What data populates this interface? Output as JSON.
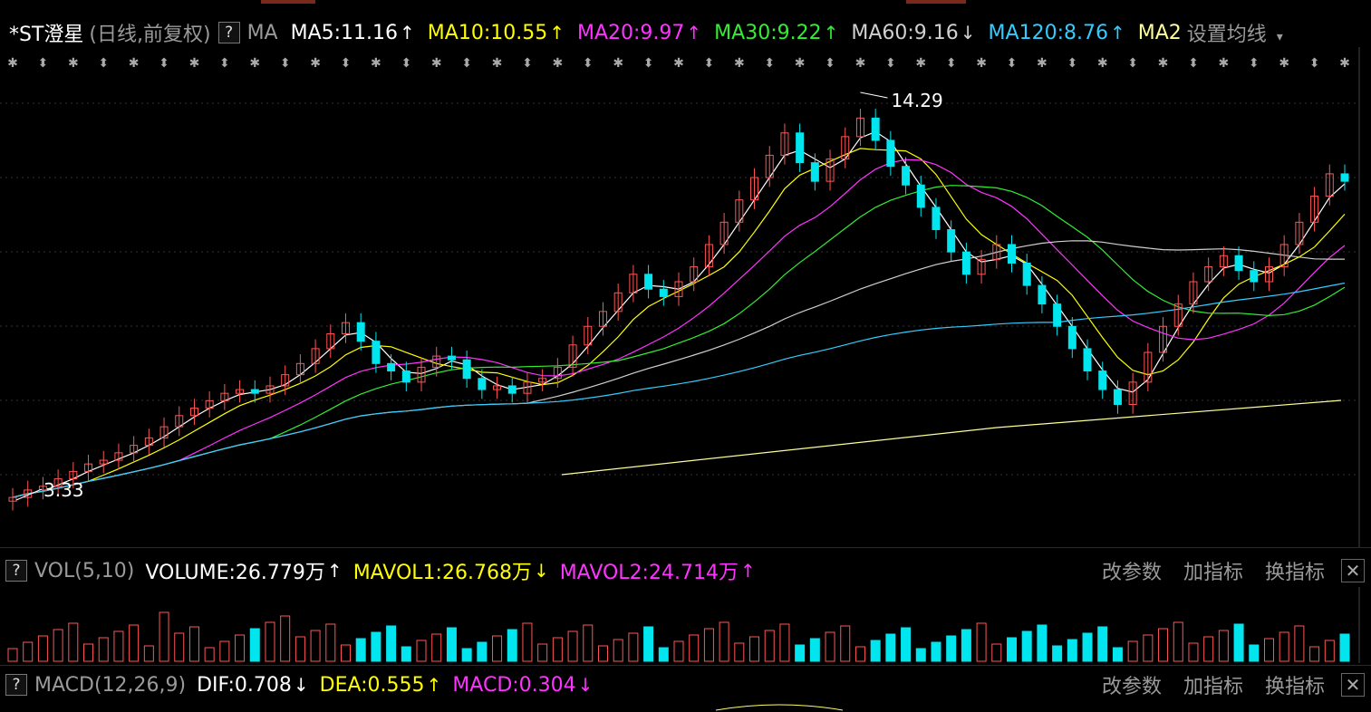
{
  "main_indicator": {
    "stock_title": "*ST澄星",
    "period_label": "(日线,前复权)",
    "help": "?",
    "ma_label": "MA",
    "items": [
      {
        "text": "MA5:11.16",
        "arrow": "↑",
        "color": "#ffffff"
      },
      {
        "text": "MA10:10.55",
        "arrow": "↑",
        "color": "#ffff00"
      },
      {
        "text": "MA20:9.97",
        "arrow": "↑",
        "color": "#ff33ff"
      },
      {
        "text": "MA30:9.22",
        "arrow": "↑",
        "color": "#33ee33"
      },
      {
        "text": "MA60:9.16",
        "arrow": "↓",
        "color": "#d0d0d0"
      },
      {
        "text": "MA120:8.76",
        "arrow": "↑",
        "color": "#33ccff"
      },
      {
        "text": "MA2",
        "arrow": "",
        "color": "#ffff99"
      }
    ],
    "settings_label": "设置均线",
    "settings_arrow": "▾"
  },
  "price_chart": {
    "type": "candlestick",
    "high_label": "14.29",
    "low_label": "3.33",
    "colors": {
      "up": "#ff5555",
      "down": "#00e5ee",
      "ma5": "#ffffff",
      "ma10": "#ffff00",
      "ma20": "#ff33ff",
      "ma30": "#33ee33",
      "ma60": "#d0d0d0",
      "ma120": "#33ccff",
      "ma250": "#ffff99"
    }
  },
  "volume_panel": {
    "help": "?",
    "label": "VOL(5,10)",
    "volume": "VOLUME:26.779万",
    "volume_arrow": "↑",
    "mavol1": "MAVOL1:26.768万",
    "mavol1_arrow": "↓",
    "mavol2": "MAVOL2:24.714万",
    "mavol2_arrow": "↑",
    "tools": [
      "改参数",
      "加指标",
      "换指标"
    ],
    "close": "✕"
  },
  "macd_panel": {
    "help": "?",
    "label": "MACD(12,26,9)",
    "dif": "DIF:0.708",
    "dif_arrow": "↓",
    "dea": "DEA:0.555",
    "dea_arrow": "↑",
    "macd": "MACD:0.304",
    "macd_arrow": "↓",
    "tools": [
      "改参数",
      "加指标",
      "换指标"
    ],
    "close": "✕"
  },
  "chart_data": {
    "type": "candlestick",
    "title": "*ST澄星 (日线,前复权)",
    "annotations": [
      {
        "label": "14.29",
        "kind": "high"
      },
      {
        "label": "3.33",
        "kind": "low"
      }
    ],
    "price_range": [
      3.33,
      14.29
    ],
    "close": [
      3.4,
      3.6,
      3.7,
      3.9,
      4.1,
      4.3,
      4.4,
      4.6,
      4.8,
      5.0,
      5.3,
      5.6,
      5.8,
      6.0,
      6.2,
      6.3,
      6.2,
      6.4,
      6.7,
      7.0,
      7.4,
      7.8,
      8.1,
      7.6,
      7.0,
      6.8,
      6.5,
      6.9,
      7.2,
      7.1,
      6.6,
      6.3,
      6.4,
      6.2,
      6.5,
      6.6,
      6.9,
      7.5,
      8.0,
      8.4,
      8.9,
      9.4,
      9.0,
      8.8,
      9.2,
      9.6,
      10.2,
      10.8,
      11.4,
      12.0,
      12.6,
      13.2,
      12.4,
      11.9,
      12.5,
      13.1,
      13.6,
      13.0,
      12.3,
      11.8,
      11.2,
      10.6,
      10.0,
      9.4,
      9.8,
      10.2,
      9.7,
      9.1,
      8.6,
      8.0,
      7.4,
      6.8,
      6.3,
      5.9,
      6.5,
      7.3,
      8.0,
      8.6,
      9.2,
      9.6,
      9.9,
      9.5,
      9.2,
      9.6,
      10.2,
      10.8,
      11.5,
      12.1,
      11.9
    ],
    "volume_note": "VOLUME:26.779万 MAVOL1:26.768万 MAVOL2:24.714万",
    "macd_note": "DIF:0.708 DEA:0.555 MACD:0.304"
  }
}
